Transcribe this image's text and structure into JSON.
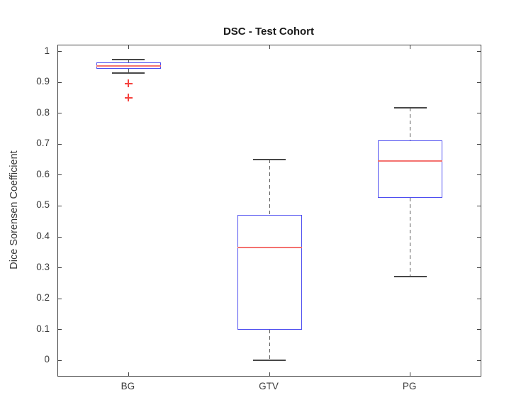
{
  "chart_data": {
    "type": "boxplot",
    "title": "DSC - Test Cohort",
    "ylabel": "Dice Sorensen Coefficient",
    "xlabel": "",
    "categories": [
      "BG",
      "GTV",
      "PG"
    ],
    "series": [
      {
        "name": "BG",
        "whisker_low": 0.93,
        "q1": 0.945,
        "median": 0.954,
        "q3": 0.965,
        "whisker_high": 0.973,
        "outliers": [
          0.897,
          0.851
        ]
      },
      {
        "name": "GTV",
        "whisker_low": 0.0,
        "q1": 0.1,
        "median": 0.366,
        "q3": 0.472,
        "whisker_high": 0.65,
        "outliers": []
      },
      {
        "name": "PG",
        "whisker_low": 0.271,
        "q1": 0.527,
        "median": 0.645,
        "q3": 0.713,
        "whisker_high": 0.819,
        "outliers": []
      }
    ],
    "ylim": [
      -0.05,
      1.02
    ],
    "yticks": [
      {
        "v": 0,
        "label": "0"
      },
      {
        "v": 0.1,
        "label": "0.1"
      },
      {
        "v": 0.2,
        "label": "0.2"
      },
      {
        "v": 0.3,
        "label": "0.3"
      },
      {
        "v": 0.4,
        "label": "0.4"
      },
      {
        "v": 0.5,
        "label": "0.5"
      },
      {
        "v": 0.6,
        "label": "0.6"
      },
      {
        "v": 0.7,
        "label": "0.7"
      },
      {
        "v": 0.8,
        "label": "0.8"
      },
      {
        "v": 0.9,
        "label": "0.9"
      },
      {
        "v": 1,
        "label": "1"
      }
    ],
    "grid": false,
    "legend": null,
    "colors": {
      "box_edge": "#4e4ef0",
      "median": "#f4726f",
      "whisker": "#555555",
      "cap": "#484848",
      "outlier": "#f5413d",
      "axis": "#3e3e3e",
      "tick_text": "#3a3a3a",
      "title_text": "#1a1a1a",
      "background": "#ffffff"
    }
  }
}
